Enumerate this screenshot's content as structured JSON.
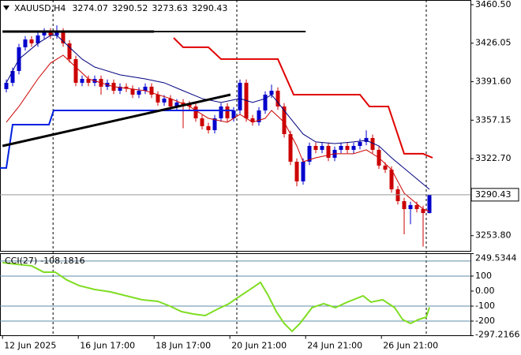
{
  "chart_data": [
    {
      "type": "candlestick",
      "title": "XAUUSD,H4",
      "open": [
        3385.0,
        3390.6,
        3401.2,
        3422.4,
        3429.4,
        3425.9,
        3433.0,
        3436.5,
        3433.0,
        3436.5,
        3425.9,
        3411.8,
        3390.6,
        3394.1,
        3390.6,
        3394.1,
        3387.1,
        3390.6,
        3383.5,
        3387.1,
        3385.3,
        3380.0,
        3383.5,
        3387.1,
        3380.0,
        3373.0,
        3376.5,
        3369.4,
        3373.0,
        3371.2,
        3369.4,
        3358.8,
        3351.8,
        3348.2,
        3358.8,
        3369.4,
        3358.8,
        3365.9,
        3390.6,
        3358.8,
        3355.3,
        3365.9,
        3380.0,
        3383.5,
        3369.4,
        3344.7,
        3320.0,
        3302.4,
        3320.0,
        3334.1,
        3330.6,
        3334.1,
        3323.5,
        3330.6,
        3334.1,
        3330.6,
        3334.1,
        3337.7,
        3341.2,
        3330.6,
        3316.5,
        3312.9,
        3295.3,
        3284.7,
        3277.6,
        3281.2,
        3277.6,
        3274.07
      ],
      "high": [
        3393.6,
        3404.2,
        3425.4,
        3432.4,
        3432.4,
        3436.0,
        3439.5,
        3439.5,
        3442.0,
        3439.5,
        3428.9,
        3414.8,
        3397.1,
        3397.1,
        3397.1,
        3397.1,
        3393.6,
        3393.6,
        3390.1,
        3390.1,
        3388.3,
        3386.5,
        3390.1,
        3390.1,
        3383.0,
        3379.5,
        3379.5,
        3376.0,
        3376.0,
        3374.2,
        3372.4,
        3361.8,
        3354.8,
        3361.8,
        3372.4,
        3372.4,
        3368.9,
        3393.6,
        3393.6,
        3361.8,
        3368.9,
        3383.0,
        3389.0,
        3386.5,
        3372.4,
        3347.7,
        3323.0,
        3323.0,
        3337.1,
        3337.1,
        3337.1,
        3337.1,
        3333.6,
        3337.1,
        3337.1,
        3337.1,
        3340.7,
        3348.0,
        3344.2,
        3333.6,
        3319.5,
        3315.9,
        3298.3,
        3287.7,
        3284.2,
        3284.2,
        3280.6,
        3290.52
      ],
      "low": [
        3382.0,
        3387.6,
        3398.2,
        3419.4,
        3422.9,
        3422.9,
        3430.0,
        3430.0,
        3430.0,
        3422.9,
        3408.8,
        3387.6,
        3387.6,
        3387.6,
        3387.6,
        3380.0,
        3384.1,
        3380.5,
        3380.5,
        3382.3,
        3377.0,
        3377.0,
        3380.5,
        3377.0,
        3370.0,
        3370.0,
        3366.4,
        3366.4,
        3350.0,
        3366.4,
        3355.8,
        3348.8,
        3345.2,
        3345.2,
        3355.8,
        3355.8,
        3355.8,
        3362.9,
        3355.8,
        3352.3,
        3352.3,
        3362.9,
        3377.0,
        3366.4,
        3341.7,
        3317.0,
        3298.0,
        3299.4,
        3317.0,
        3327.6,
        3327.6,
        3320.5,
        3320.5,
        3327.6,
        3327.6,
        3327.6,
        3331.1,
        3334.7,
        3327.6,
        3313.5,
        3309.9,
        3292.3,
        3281.7,
        3255.0,
        3264.0,
        3274.6,
        3244.0,
        3273.63
      ],
      "close": [
        3390.6,
        3401.2,
        3422.4,
        3429.4,
        3425.9,
        3433.0,
        3436.5,
        3433.0,
        3436.5,
        3425.9,
        3411.8,
        3390.6,
        3394.1,
        3390.6,
        3394.1,
        3387.1,
        3390.6,
        3383.5,
        3387.1,
        3385.3,
        3380.0,
        3383.5,
        3387.1,
        3380.0,
        3373.0,
        3376.5,
        3369.4,
        3373.0,
        3371.2,
        3369.4,
        3358.8,
        3351.8,
        3348.2,
        3358.8,
        3369.4,
        3358.8,
        3365.9,
        3390.6,
        3358.8,
        3355.3,
        3365.9,
        3380.0,
        3383.5,
        3369.4,
        3344.7,
        3320.0,
        3302.4,
        3320.0,
        3334.1,
        3330.6,
        3334.1,
        3323.5,
        3330.6,
        3334.1,
        3330.6,
        3334.1,
        3337.7,
        3341.2,
        3330.6,
        3316.5,
        3312.9,
        3295.3,
        3284.7,
        3277.6,
        3281.2,
        3277.6,
        3274.07,
        3290.43
      ],
      "up_color": "#0000cd",
      "down_color": "#cc0000",
      "xlim": [
        -1,
        73.5
      ],
      "ylim": [
        3240.2,
        3464.7
      ],
      "yticks": [
        {
          "value": 3460.5,
          "label": "3460.50"
        },
        3426.05,
        {
          "value": 3391.6,
          "label": "3391.60"
        },
        3357.15,
        {
          "value": 3322.7,
          "label": "3322.70"
        },
        {
          "value": 3253.8,
          "label": "3253.80"
        }
      ],
      "vlines": [
        7.4,
        36.5,
        66.5
      ],
      "series": [
        {
          "color": "#000080",
          "width": 1,
          "x": [
            0,
            2,
            5,
            7,
            8,
            10,
            12,
            14,
            18,
            22,
            25,
            28,
            31,
            34,
            37,
            39,
            41,
            42,
            43,
            45,
            47,
            49,
            52,
            55,
            57,
            59,
            61,
            64,
            67
          ],
          "values": [
            3390.6,
            3411.8,
            3425.9,
            3433.0,
            3433.0,
            3422.4,
            3411.8,
            3404.7,
            3397.7,
            3394.1,
            3390.6,
            3383.5,
            3376.5,
            3373.0,
            3376.5,
            3373.0,
            3376.5,
            3380.0,
            3373.0,
            3358.8,
            3344.7,
            3337.7,
            3336.2,
            3337.7,
            3339.1,
            3334.1,
            3323.5,
            3309.4,
            3295.3
          ]
        },
        {
          "color": "#cc0000",
          "width": 1,
          "x": [
            0,
            2,
            5,
            7,
            9,
            11,
            13,
            17,
            22,
            26,
            29,
            32,
            35,
            37,
            39,
            41,
            42,
            44,
            46,
            47,
            49,
            52,
            55,
            57,
            59,
            61,
            63,
            66,
            67
          ],
          "values": [
            3355.3,
            3369.4,
            3394.1,
            3408.3,
            3415.3,
            3404.7,
            3394.1,
            3387.1,
            3383.5,
            3376.5,
            3369.4,
            3358.8,
            3355.3,
            3362.4,
            3355.3,
            3358.8,
            3365.9,
            3355.3,
            3334.1,
            3320.0,
            3323.5,
            3327.1,
            3327.1,
            3330.6,
            3323.5,
            3312.9,
            3291.8,
            3277.6,
            3275.5
          ]
        },
        {
          "color": "#e00000",
          "width": 2,
          "x": [
            26.5,
            28,
            32,
            34,
            43,
            45.5,
            56,
            57.5,
            60.5,
            63,
            66,
            67.5
          ],
          "values": [
            3430.8,
            3422.4,
            3422.4,
            3411.8,
            3411.8,
            3380.0,
            3380.0,
            3369.4,
            3369.4,
            3327.1,
            3327.1,
            3323.5
          ]
        },
        {
          "color": "#0020e0",
          "width": 2,
          "x": [
            -1,
            0,
            1,
            6.75,
            7.5,
            35.9
          ],
          "values": [
            3314.4,
            3314.4,
            3353.2,
            3353.2,
            3365.9,
            3365.9
          ]
        },
        {
          "color": "#000000",
          "width": 3,
          "x": [
            -0.6,
            35.5
          ],
          "values": [
            3334.1,
            3380.0
          ]
        },
        {
          "color": "#000000",
          "width": 3,
          "x": [
            -0.6,
            23.4
          ],
          "values": [
            3436.5,
            3436.5
          ]
        },
        {
          "color": "#000000",
          "width": 2,
          "x": [
            23.4,
            47.4
          ],
          "values": [
            3436.5,
            3436.5
          ]
        }
      ]
    },
    {
      "type": "line",
      "title": "CCI(27)",
      "xlim": [
        -1,
        73.5
      ],
      "ylim": [
        -297.2166,
        249.5344
      ],
      "yticks": [
        249.5344,
        100,
        {
          "value": 0,
          "label": "0.00"
        },
        -100,
        -200,
        -297.2166
      ],
      "levels": [
        200,
        100,
        -100,
        -200
      ],
      "xticks": [
        {
          "value": -0.6,
          "label": "12 Jun 2025"
        },
        {
          "value": 11.4,
          "label": "16 Jun 17:00"
        },
        {
          "value": 23.4,
          "label": "18 Jun 17:00"
        },
        {
          "value": 35.4,
          "label": "20 Jun 21:00"
        },
        {
          "value": 47.4,
          "label": "24 Jun 21:00"
        },
        {
          "value": 59.4,
          "label": "26 Jun 21:00"
        }
      ],
      "series": [
        {
          "color": "#7fdd22",
          "width": 2,
          "x": [
            -0.6,
            1.5,
            4,
            5.9,
            7.75,
            9.6,
            11.5,
            14,
            16.5,
            19,
            21.5,
            24,
            25.9,
            27.75,
            29.6,
            31.5,
            33.4,
            35.25,
            36.5,
            38.4,
            40.25,
            41.5,
            42.75,
            44,
            45.25,
            46.5,
            48.4,
            50.25,
            52.1,
            54,
            56.5,
            57.75,
            59.6,
            61.5,
            62.75,
            64,
            65.25,
            66.5,
            67
          ],
          "values": [
            189.5,
            178.9,
            168.4,
            126.3,
            126.3,
            73.7,
            36.8,
            10.5,
            -5.3,
            -31.6,
            -57.9,
            -68.4,
            -100,
            -136.8,
            -152.6,
            -163.2,
            -121.1,
            -84.2,
            -47.4,
            5.3,
            57.9,
            -31.6,
            -136.8,
            -215.8,
            -268.4,
            -215.8,
            -110.5,
            -84.2,
            -110.5,
            -73.7,
            -31.6,
            -73.7,
            -57.9,
            -110.5,
            -189.5,
            -215.8,
            -189.5,
            -173.7,
            -108.1816
          ]
        }
      ]
    }
  ]
}
